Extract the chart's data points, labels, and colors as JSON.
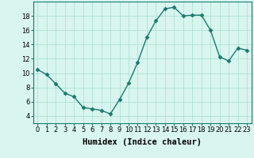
{
  "x": [
    0,
    1,
    2,
    3,
    4,
    5,
    6,
    7,
    8,
    9,
    10,
    11,
    12,
    13,
    14,
    15,
    16,
    17,
    18,
    19,
    20,
    21,
    22,
    23
  ],
  "y": [
    10.5,
    9.8,
    8.5,
    7.2,
    6.7,
    5.2,
    5.0,
    4.8,
    4.3,
    6.3,
    8.6,
    11.5,
    15.0,
    17.3,
    19.0,
    19.2,
    18.0,
    18.1,
    18.1,
    16.0,
    12.3,
    11.7,
    13.5,
    13.2
  ],
  "line_color": "#1a7a6a",
  "marker": "D",
  "marker_size": 2.5,
  "bg_color": "#d8f5f0",
  "grid_color": "#aaddcc",
  "xlabel": "Humidex (Indice chaleur)",
  "xlabel_fontsize": 7.5,
  "ylim": [
    3,
    20
  ],
  "xlim": [
    -0.5,
    23.5
  ],
  "yticks": [
    4,
    6,
    8,
    10,
    12,
    14,
    16,
    18
  ],
  "xticks": [
    0,
    1,
    2,
    3,
    4,
    5,
    6,
    7,
    8,
    9,
    10,
    11,
    12,
    13,
    14,
    15,
    16,
    17,
    18,
    19,
    20,
    21,
    22,
    23
  ],
  "tick_fontsize": 6,
  "linewidth": 1.0
}
